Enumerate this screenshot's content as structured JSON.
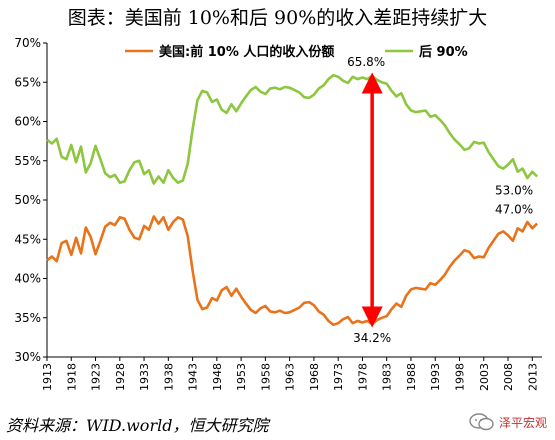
{
  "title": "图表：美国前 10%和后 90%的收入差距持续扩大",
  "source": "资料来源：WID.world，恒大研究院",
  "watermark": {
    "icon": "chat-bubbles-icon",
    "text": "泽平宏观"
  },
  "colors": {
    "top10": "#E8731A",
    "bottom90": "#8DC63F",
    "arrow": "#FF0000",
    "axis": "#000000"
  },
  "chart_data": {
    "type": "line",
    "title": "",
    "xlabel": "",
    "ylabel": "",
    "xlim": [
      1913,
      2015
    ],
    "ylim": [
      30,
      70
    ],
    "grid": false,
    "legend": "top-center",
    "y_ticks": [
      "30%",
      "35%",
      "40%",
      "45%",
      "50%",
      "55%",
      "60%",
      "65%",
      "70%"
    ],
    "x_ticks": [
      "1913",
      "1918",
      "1923",
      "1928",
      "1933",
      "1938",
      "1943",
      "1948",
      "1953",
      "1958",
      "1963",
      "1968",
      "1973",
      "1978",
      "1983",
      "1988",
      "1993",
      "1998",
      "2003",
      "2008",
      "2013"
    ],
    "x_tick_values": [
      1913,
      1918,
      1923,
      1928,
      1933,
      1938,
      1943,
      1948,
      1953,
      1958,
      1963,
      1968,
      1973,
      1978,
      1983,
      1988,
      1993,
      1998,
      2003,
      2008,
      2013
    ],
    "series": [
      {
        "name": "美国:前 10% 人口的收入份额",
        "x": [
          1913,
          1914,
          1915,
          1916,
          1917,
          1918,
          1919,
          1920,
          1921,
          1922,
          1923,
          1924,
          1925,
          1926,
          1927,
          1928,
          1929,
          1930,
          1931,
          1932,
          1933,
          1934,
          1935,
          1936,
          1937,
          1938,
          1939,
          1940,
          1941,
          1942,
          1943,
          1944,
          1945,
          1946,
          1947,
          1948,
          1949,
          1950,
          1951,
          1952,
          1953,
          1954,
          1955,
          1956,
          1957,
          1958,
          1959,
          1960,
          1961,
          1962,
          1963,
          1964,
          1965,
          1966,
          1967,
          1968,
          1969,
          1970,
          1971,
          1972,
          1973,
          1974,
          1975,
          1976,
          1977,
          1978,
          1979,
          1980,
          1981,
          1982,
          1983,
          1984,
          1985,
          1986,
          1987,
          1988,
          1989,
          1990,
          1991,
          1992,
          1993,
          1994,
          1995,
          1996,
          1997,
          1998,
          1999,
          2000,
          2001,
          2002,
          2003,
          2004,
          2005,
          2006,
          2007,
          2008,
          2009,
          2010,
          2011,
          2012,
          2013,
          2014
        ],
        "values": [
          42.3,
          42.8,
          42.2,
          44.5,
          44.8,
          43.0,
          45.2,
          43.2,
          46.5,
          45.3,
          43.1,
          44.8,
          46.6,
          47.1,
          46.8,
          47.8,
          47.6,
          46.2,
          45.2,
          45.0,
          46.7,
          46.2,
          47.9,
          47.0,
          47.8,
          46.2,
          47.2,
          47.8,
          47.5,
          45.4,
          41.0,
          37.3,
          36.1,
          36.3,
          37.5,
          37.2,
          38.5,
          38.9,
          37.8,
          38.7,
          37.7,
          36.8,
          36.0,
          35.6,
          36.2,
          36.5,
          35.8,
          35.7,
          35.9,
          35.6,
          35.7,
          36.0,
          36.3,
          36.9,
          37.0,
          36.6,
          35.8,
          35.4,
          34.6,
          34.1,
          34.3,
          34.8,
          35.1,
          34.3,
          34.6,
          34.4,
          34.6,
          34.2,
          34.7,
          35.0,
          35.2,
          36.1,
          36.8,
          36.4,
          37.8,
          38.6,
          38.8,
          38.7,
          38.6,
          39.4,
          39.2,
          39.8,
          40.5,
          41.5,
          42.3,
          42.9,
          43.6,
          43.4,
          42.6,
          42.8,
          42.7,
          43.9,
          44.8,
          45.7,
          46.0,
          45.5,
          44.8,
          46.4,
          46.0,
          47.2,
          46.4,
          47.0
        ]
      },
      {
        "name": "后 90%",
        "x": [
          1913,
          1914,
          1915,
          1916,
          1917,
          1918,
          1919,
          1920,
          1921,
          1922,
          1923,
          1924,
          1925,
          1926,
          1927,
          1928,
          1929,
          1930,
          1931,
          1932,
          1933,
          1934,
          1935,
          1936,
          1937,
          1938,
          1939,
          1940,
          1941,
          1942,
          1943,
          1944,
          1945,
          1946,
          1947,
          1948,
          1949,
          1950,
          1951,
          1952,
          1953,
          1954,
          1955,
          1956,
          1957,
          1958,
          1959,
          1960,
          1961,
          1962,
          1963,
          1964,
          1965,
          1966,
          1967,
          1968,
          1969,
          1970,
          1971,
          1972,
          1973,
          1974,
          1975,
          1976,
          1977,
          1978,
          1979,
          1980,
          1981,
          1982,
          1983,
          1984,
          1985,
          1986,
          1987,
          1988,
          1989,
          1990,
          1991,
          1992,
          1993,
          1994,
          1995,
          1996,
          1997,
          1998,
          1999,
          2000,
          2001,
          2002,
          2003,
          2004,
          2005,
          2006,
          2007,
          2008,
          2009,
          2010,
          2011,
          2012,
          2013,
          2014
        ],
        "values": [
          57.7,
          57.2,
          57.8,
          55.5,
          55.2,
          57.0,
          54.8,
          56.8,
          53.5,
          54.7,
          56.9,
          55.2,
          53.4,
          52.9,
          53.2,
          52.2,
          52.4,
          53.8,
          54.8,
          55.0,
          53.3,
          53.8,
          52.1,
          53.0,
          52.2,
          53.8,
          52.8,
          52.2,
          52.5,
          54.6,
          59.0,
          62.7,
          63.9,
          63.7,
          62.5,
          62.8,
          61.5,
          61.1,
          62.2,
          61.3,
          62.3,
          63.2,
          64.0,
          64.4,
          63.8,
          63.5,
          64.2,
          64.3,
          64.1,
          64.4,
          64.3,
          64.0,
          63.7,
          63.1,
          63.0,
          63.4,
          64.2,
          64.6,
          65.4,
          65.9,
          65.7,
          65.2,
          64.9,
          65.7,
          65.4,
          65.6,
          65.4,
          65.8,
          65.3,
          65.0,
          64.8,
          63.9,
          63.2,
          63.6,
          62.2,
          61.4,
          61.2,
          61.3,
          61.4,
          60.6,
          60.8,
          60.2,
          59.5,
          58.5,
          57.7,
          57.1,
          56.4,
          56.6,
          57.4,
          57.2,
          57.3,
          56.1,
          55.2,
          54.3,
          54.0,
          54.5,
          55.2,
          53.6,
          54.0,
          52.8,
          53.6,
          53.0
        ]
      }
    ],
    "annotations": [
      {
        "text": "65.8%",
        "x": 1980,
        "y": 65.8
      },
      {
        "text": "34.2%",
        "x": 1980,
        "y": 34.2
      },
      {
        "text": "47.0%",
        "x": 2014,
        "y": 47.0
      },
      {
        "text": "53.0%",
        "x": 2014,
        "y": 53.0
      }
    ],
    "arrow": {
      "x": 1980,
      "y_from": 34.2,
      "y_to": 65.8
    }
  }
}
